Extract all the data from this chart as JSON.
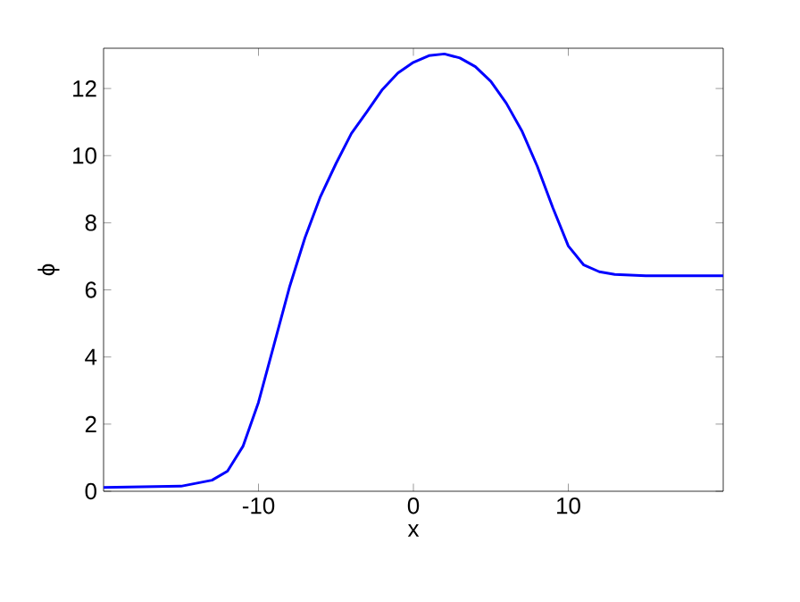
{
  "chart_data": {
    "type": "line",
    "xlabel": "x",
    "ylabel": "ϕ",
    "xlim": [
      -20,
      20
    ],
    "ylim": [
      0,
      13.2
    ],
    "xticks": [
      -10,
      0,
      10
    ],
    "yticks": [
      0,
      2,
      4,
      6,
      8,
      10,
      12
    ],
    "marker": "none",
    "line_style": "solid",
    "series": [
      {
        "color": "#0000ff",
        "x": [
          -20,
          -15,
          -13,
          -12,
          -11,
          -10,
          -9,
          -8,
          -7,
          -6,
          -5,
          -4,
          -3,
          -2,
          -1,
          0,
          1,
          2,
          3,
          4,
          5,
          6,
          7,
          8,
          9,
          10,
          11,
          12,
          13,
          15,
          20
        ],
        "values": [
          0.11,
          0.15,
          0.33,
          0.6,
          1.34,
          2.65,
          4.36,
          6.08,
          7.55,
          8.78,
          9.76,
          10.66,
          11.31,
          11.97,
          12.46,
          12.78,
          12.98,
          13.03,
          12.91,
          12.65,
          12.21,
          11.56,
          10.74,
          9.68,
          8.45,
          7.31,
          6.74,
          6.54,
          6.46,
          6.42,
          6.42
        ]
      }
    ]
  }
}
